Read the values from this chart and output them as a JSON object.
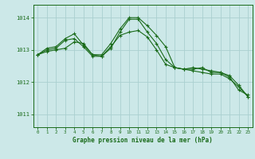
{
  "title": "Graphe pression niveau de la mer (hPa)",
  "bg_color": "#cce8e8",
  "grid_color": "#aad0d0",
  "line_color": "#1a6b1a",
  "xlim": [
    -0.5,
    23.5
  ],
  "ylim": [
    1010.6,
    1014.4
  ],
  "yticks": [
    1011,
    1012,
    1013,
    1014
  ],
  "xticks": [
    0,
    1,
    2,
    3,
    4,
    5,
    6,
    7,
    8,
    9,
    10,
    11,
    12,
    13,
    14,
    15,
    16,
    17,
    18,
    19,
    20,
    21,
    22,
    23
  ],
  "series": [
    [
      1012.85,
      1012.95,
      1013.0,
      1013.05,
      1013.25,
      1013.2,
      1012.85,
      1012.8,
      1013.05,
      1013.55,
      1013.95,
      1013.95,
      1013.55,
      1013.2,
      1012.7,
      1012.45,
      1012.4,
      1012.4,
      1012.45,
      1012.3,
      1012.3,
      1012.15,
      1011.75,
      1011.6
    ],
    [
      1012.85,
      1013.0,
      1013.05,
      1013.3,
      1013.35,
      1013.1,
      1012.8,
      1012.8,
      1013.1,
      1013.45,
      1013.55,
      1013.6,
      1013.4,
      1013.0,
      1012.55,
      1012.45,
      1012.4,
      1012.35,
      1012.3,
      1012.25,
      1012.25,
      1012.1,
      1011.85,
      1011.55
    ],
    [
      1012.85,
      1013.05,
      1013.1,
      1013.35,
      1013.5,
      1013.15,
      1012.85,
      1012.85,
      1013.2,
      1013.65,
      1014.0,
      1014.0,
      1013.75,
      1013.45,
      1013.1,
      1012.45,
      1012.4,
      1012.45,
      1012.4,
      1012.35,
      1012.3,
      1012.2,
      1011.9,
      1011.55
    ]
  ]
}
